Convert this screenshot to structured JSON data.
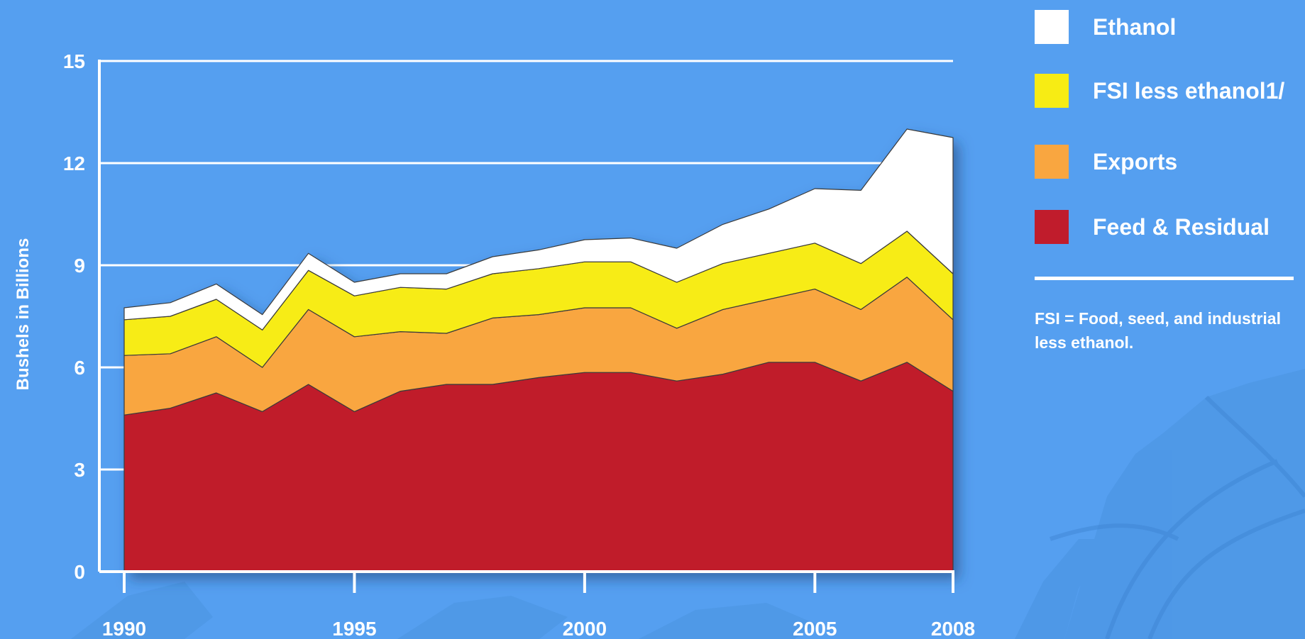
{
  "chart_data": {
    "type": "area",
    "stacked": true,
    "title": "",
    "xlabel": "",
    "ylabel": "Bushels in Billions",
    "xlim": [
      1990,
      2008
    ],
    "ylim": [
      0,
      15
    ],
    "yticks": [
      0,
      3,
      6,
      9,
      12,
      15
    ],
    "xticks": [
      1990,
      1995,
      2000,
      2005,
      2008
    ],
    "grid": "horizontal",
    "legend_position": "right",
    "x": [
      1990,
      1991,
      1992,
      1993,
      1994,
      1995,
      1996,
      1997,
      1998,
      1999,
      2000,
      2001,
      2002,
      2003,
      2004,
      2005,
      2006,
      2007,
      2008
    ],
    "series": [
      {
        "name": "Feed & Residual",
        "color": "#c01c2c",
        "values": [
          4.6,
          4.8,
          5.25,
          4.7,
          5.5,
          4.7,
          5.3,
          5.5,
          5.5,
          5.7,
          5.85,
          5.85,
          5.6,
          5.8,
          6.15,
          6.15,
          5.6,
          6.15,
          5.3
        ]
      },
      {
        "name": "Exports",
        "color": "#f9a640",
        "values": [
          1.75,
          1.6,
          1.65,
          1.3,
          2.2,
          2.2,
          1.75,
          1.5,
          1.95,
          1.85,
          1.9,
          1.9,
          1.55,
          1.9,
          1.85,
          2.15,
          2.1,
          2.5,
          2.1
        ]
      },
      {
        "name": "FSI less ethanol1/",
        "color": "#f7ec14",
        "values": [
          1.05,
          1.1,
          1.1,
          1.1,
          1.15,
          1.2,
          1.3,
          1.3,
          1.3,
          1.35,
          1.35,
          1.35,
          1.35,
          1.35,
          1.35,
          1.35,
          1.35,
          1.35,
          1.35
        ]
      },
      {
        "name": "Ethanol",
        "color": "#ffffff",
        "values": [
          0.35,
          0.4,
          0.45,
          0.45,
          0.5,
          0.4,
          0.4,
          0.45,
          0.5,
          0.55,
          0.65,
          0.7,
          1.0,
          1.15,
          1.3,
          1.6,
          2.15,
          3.0,
          4.0
        ]
      }
    ]
  },
  "legend": {
    "items": [
      {
        "label": "Ethanol",
        "color": "#ffffff"
      },
      {
        "label": "FSI less ethanol1/",
        "color": "#f7ec14"
      },
      {
        "label": "Exports",
        "color": "#f9a640"
      },
      {
        "label": "Feed & Residual",
        "color": "#c01c2c"
      }
    ],
    "note": "FSI = Food, seed, and industrial less ethanol."
  }
}
